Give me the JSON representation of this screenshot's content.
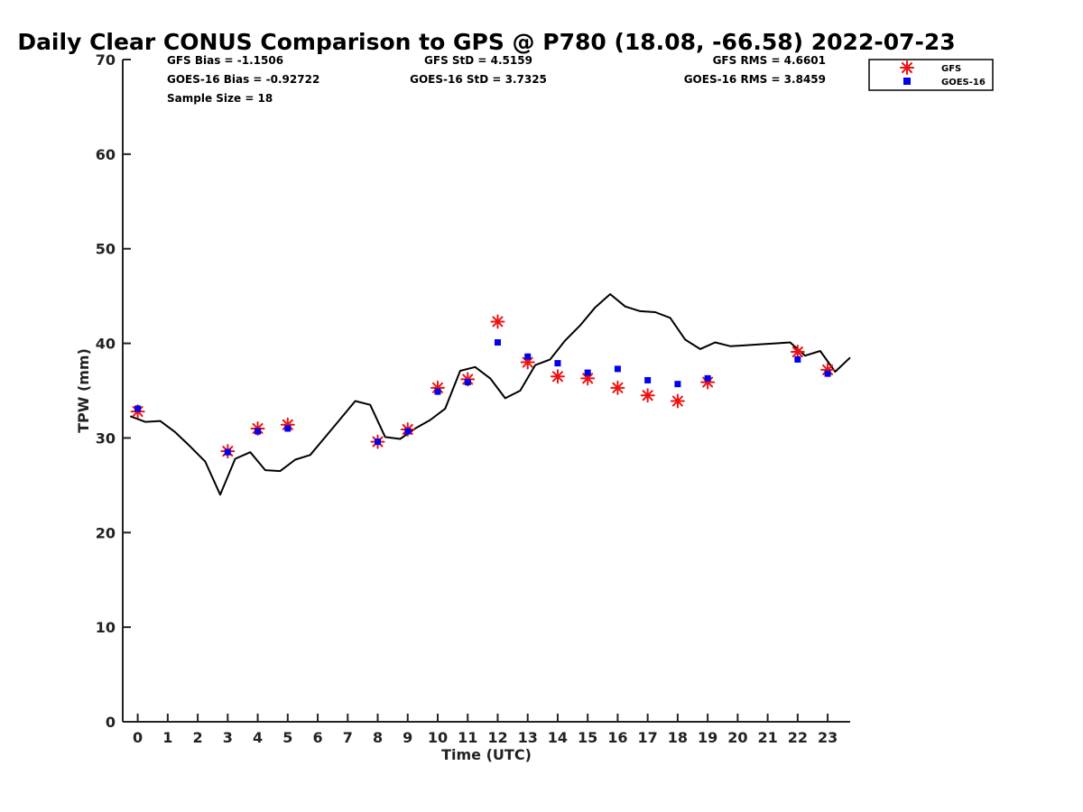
{
  "chart_data": {
    "type": "scatter",
    "title": "Daily Clear CONUS Comparison to GPS @ P780 (18.08, -66.58) 2022-07-23",
    "xlabel": "Time (UTC)",
    "ylabel": "TPW (mm)",
    "xlim": [
      -0.5,
      23.75
    ],
    "ylim": [
      0,
      70
    ],
    "x_ticks": [
      0,
      1,
      2,
      3,
      4,
      5,
      6,
      7,
      8,
      9,
      10,
      11,
      12,
      13,
      14,
      15,
      16,
      17,
      18,
      19,
      20,
      21,
      22,
      23
    ],
    "y_ticks": [
      0,
      10,
      20,
      30,
      40,
      50,
      60,
      70
    ],
    "grid": false,
    "legend_position": "top-right",
    "stats": {
      "gfs_bias": "GFS Bias = -1.1506",
      "goes_bias": "GOES-16 Bias = -0.92722",
      "sample_size": "Sample Size = 18",
      "gfs_std": "GFS StD = 4.5159",
      "goes_std": "GOES-16 StD = 3.7325",
      "gfs_rms": "GFS RMS = 4.6601",
      "goes_rms": "GOES-16 RMS = 3.8459"
    },
    "series": [
      {
        "name": "GFS",
        "marker": "asterisk",
        "color": "#ee1111",
        "x": [
          0,
          3,
          4,
          5,
          8,
          9,
          10,
          11,
          12,
          13,
          14,
          15,
          16,
          17,
          18,
          19,
          22,
          23
        ],
        "y": [
          32.8,
          28.6,
          31.0,
          31.4,
          29.6,
          30.9,
          35.3,
          36.2,
          42.3,
          38.0,
          36.5,
          36.3,
          35.3,
          34.5,
          33.9,
          35.9,
          39.1,
          37.2
        ]
      },
      {
        "name": "GOES-16",
        "marker": "square",
        "color": "#0000ee",
        "x": [
          0,
          3,
          4,
          5,
          8,
          9,
          10,
          11,
          12,
          13,
          14,
          15,
          16,
          17,
          18,
          19,
          22,
          23
        ],
        "y": [
          33.1,
          28.5,
          30.7,
          31.0,
          29.6,
          30.7,
          34.9,
          35.9,
          40.1,
          38.6,
          37.9,
          36.9,
          37.3,
          36.1,
          35.7,
          36.3,
          38.3,
          36.8
        ]
      },
      {
        "marker": "line",
        "color": "#000000",
        "x": [
          -0.25,
          0.25,
          0.75,
          1.25,
          1.75,
          2.25,
          2.75,
          3.25,
          3.75,
          4.25,
          4.75,
          5.25,
          5.75,
          6.25,
          6.75,
          7.25,
          7.75,
          8.25,
          8.75,
          9.25,
          9.75,
          10.25,
          10.75,
          11.25,
          11.75,
          12.25,
          12.75,
          13.25,
          13.75,
          14.25,
          14.75,
          15.25,
          15.75,
          16.25,
          16.75,
          17.25,
          17.75,
          18.25,
          18.75,
          19.25,
          19.75,
          20.25,
          20.75,
          21.25,
          21.75,
          22.25,
          22.75,
          23.25,
          23.75
        ],
        "y": [
          32.3,
          31.7,
          31.8,
          30.6,
          29.1,
          27.5,
          24.0,
          27.8,
          28.5,
          26.6,
          26.5,
          27.7,
          28.2,
          30.1,
          32.0,
          33.9,
          33.5,
          30.1,
          29.9,
          31.0,
          31.9,
          33.1,
          37.1,
          37.5,
          36.3,
          34.2,
          35.0,
          37.7,
          38.3,
          40.3,
          41.9,
          43.8,
          45.2,
          43.9,
          43.4,
          43.3,
          42.7,
          40.4,
          39.4,
          40.1,
          39.7,
          39.8,
          39.9,
          40.0,
          40.1,
          38.7,
          39.2,
          37.0,
          38.5
        ]
      }
    ]
  }
}
